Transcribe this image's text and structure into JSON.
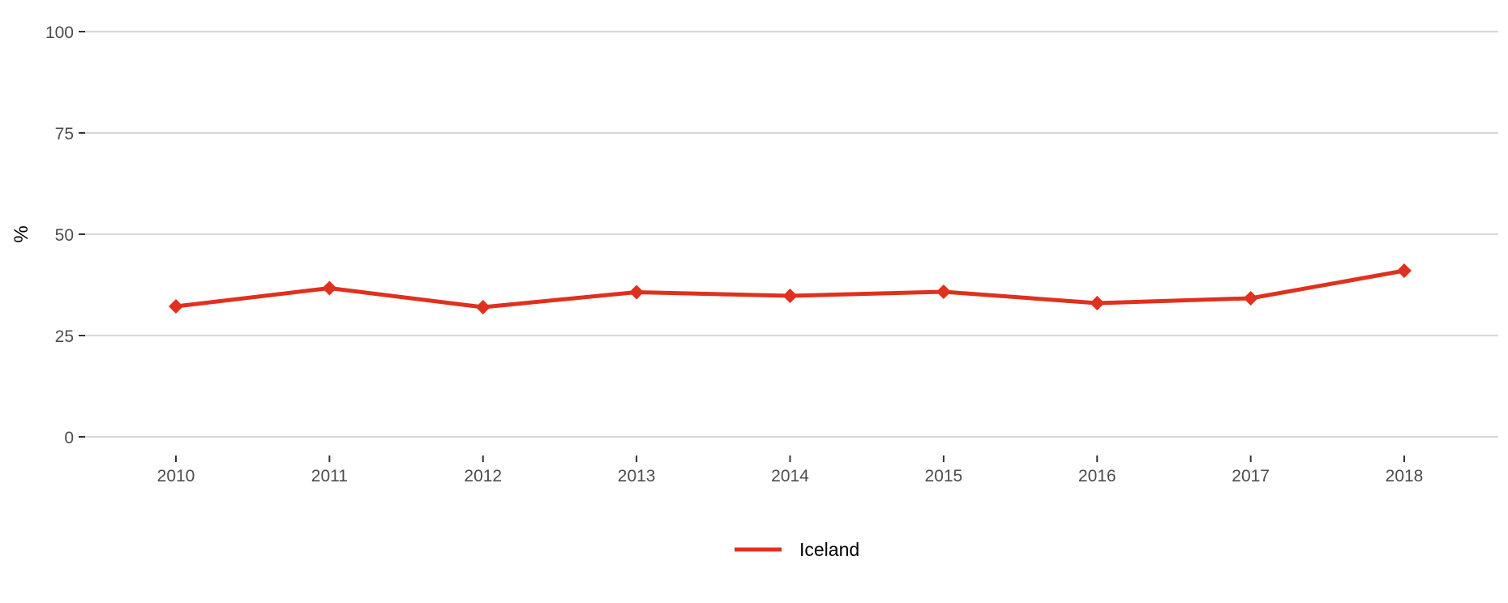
{
  "chart_data": {
    "type": "line",
    "title": "",
    "xlabel": "",
    "ylabel": "%",
    "categories": [
      "2010",
      "2011",
      "2012",
      "2013",
      "2014",
      "2015",
      "2016",
      "2017",
      "2018"
    ],
    "series": [
      {
        "name": "Iceland",
        "color": "#e0301e",
        "marker": "diamond",
        "values": [
          32.2,
          36.7,
          32.0,
          35.7,
          34.8,
          35.8,
          33.0,
          34.2,
          41.0
        ]
      }
    ],
    "ylim": [
      0,
      100
    ],
    "yticks": [
      0,
      25,
      50,
      75,
      100
    ],
    "grid": "horizontal",
    "legend_position": "bottom-center"
  }
}
